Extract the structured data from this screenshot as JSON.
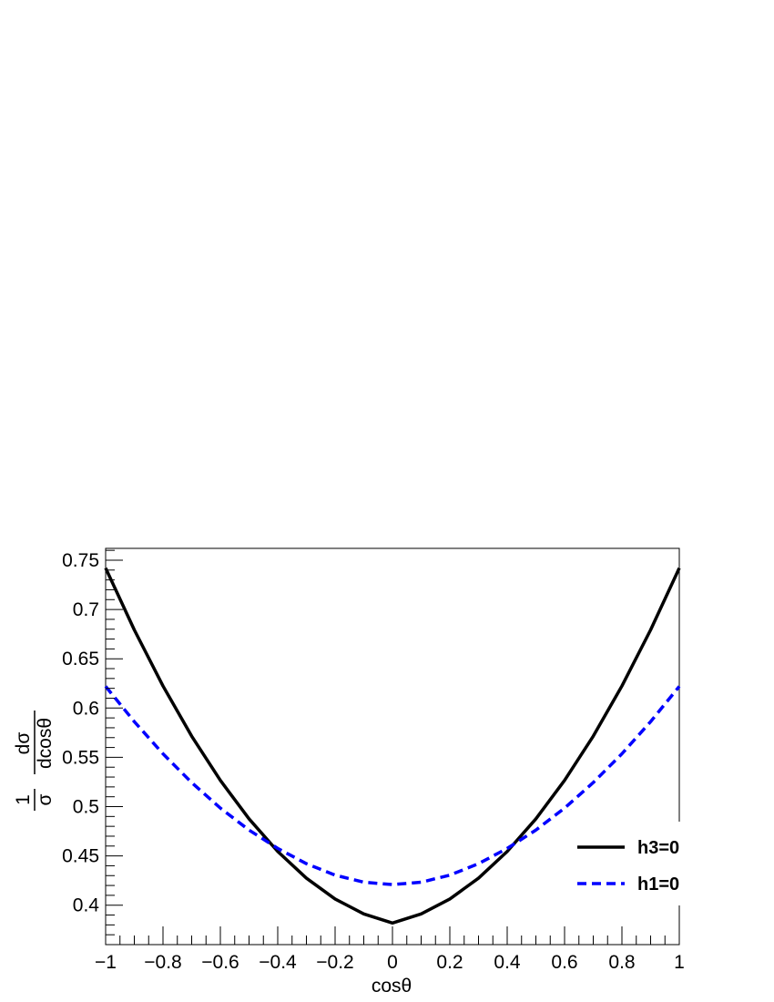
{
  "chart_data": {
    "type": "line",
    "xlabel": "cosθ",
    "ylabel": {
      "numerator": "1",
      "denominator": "σ",
      "fraction_top": "dσ",
      "fraction_bottom": "dcosθ"
    },
    "xlim": [
      -1,
      1
    ],
    "ylim": [
      0.36,
      0.762
    ],
    "xticks": [
      -1,
      -0.8,
      -0.6,
      -0.4,
      -0.2,
      0,
      0.2,
      0.4,
      0.6,
      0.8,
      1
    ],
    "xtick_labels": [
      "−1",
      "−0.8",
      "−0.6",
      "−0.4",
      "−0.2",
      "0",
      "0.2",
      "0.4",
      "0.6",
      "0.8",
      "1"
    ],
    "yticks": [
      0.4,
      0.45,
      0.5,
      0.55,
      0.6,
      0.65,
      0.7,
      0.75
    ],
    "ytick_labels": [
      "0.4",
      "0.45",
      "0.5",
      "0.55",
      "0.6",
      "0.65",
      "0.7",
      "0.75"
    ],
    "grid": false,
    "legend_position": "bottom-right",
    "series": [
      {
        "name": "h3=0",
        "color": "#000000",
        "style": "solid",
        "x": [
          -1,
          -0.9,
          -0.8,
          -0.7,
          -0.6,
          -0.5,
          -0.4,
          -0.3,
          -0.2,
          -0.1,
          0,
          0.1,
          0.2,
          0.3,
          0.4,
          0.5,
          0.6,
          0.7,
          0.8,
          0.9,
          1
        ],
        "y": [
          0.742,
          0.6793,
          0.6224,
          0.5715,
          0.5266,
          0.4876,
          0.4545,
          0.4274,
          0.4063,
          0.3911,
          0.3819,
          0.3911,
          0.4063,
          0.4274,
          0.4545,
          0.4876,
          0.5266,
          0.5715,
          0.6224,
          0.6793,
          0.742
        ]
      },
      {
        "name": "h1=0",
        "color": "#0000ff",
        "style": "dashed",
        "x": [
          -1,
          -0.9,
          -0.8,
          -0.7,
          -0.6,
          -0.5,
          -0.4,
          -0.3,
          -0.2,
          -0.1,
          0,
          0.1,
          0.2,
          0.3,
          0.4,
          0.5,
          0.6,
          0.7,
          0.8,
          0.9,
          1
        ],
        "y": [
          0.622,
          0.5862,
          0.5536,
          0.5244,
          0.4985,
          0.4762,
          0.4576,
          0.4421,
          0.4305,
          0.4233,
          0.4209,
          0.4233,
          0.4305,
          0.4421,
          0.4576,
          0.4762,
          0.4985,
          0.5244,
          0.5536,
          0.5862,
          0.622
        ]
      }
    ]
  }
}
